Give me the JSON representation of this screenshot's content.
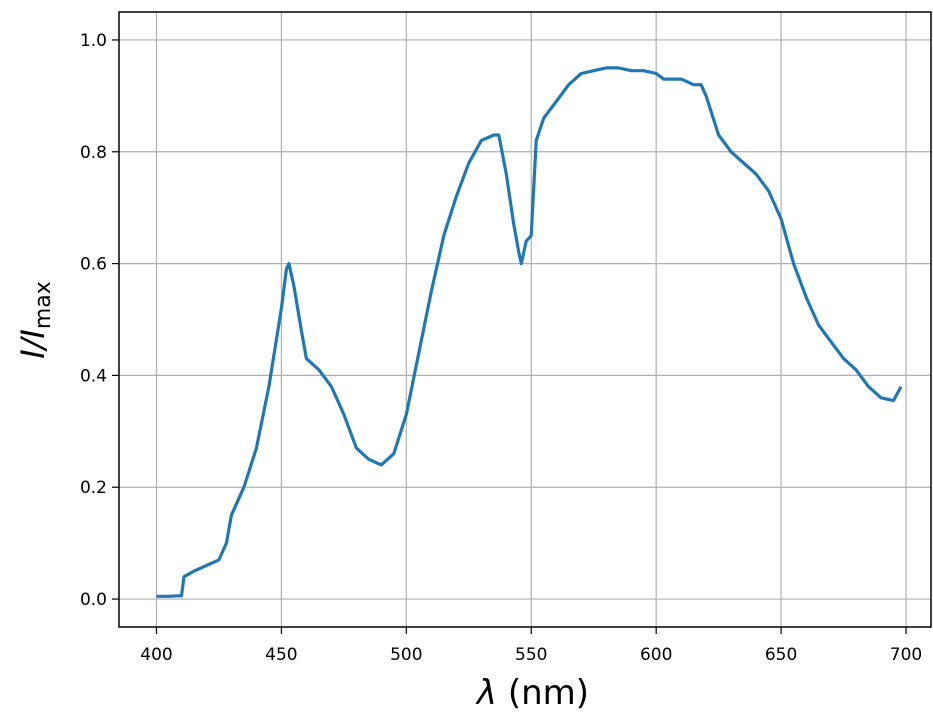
{
  "chart_data": {
    "type": "line",
    "xlabel": {
      "symbol": "λ",
      "rest": " (nm)"
    },
    "ylabel": {
      "main": "I/I",
      "subscript": "max"
    },
    "xlim": [
      385,
      710
    ],
    "ylim": [
      -0.05,
      1.05
    ],
    "xticks": [
      400,
      450,
      500,
      550,
      600,
      650,
      700
    ],
    "xtick_labels": [
      "400",
      "450",
      "500",
      "550",
      "600",
      "650",
      "700"
    ],
    "yticks": [
      0.0,
      0.2,
      0.4,
      0.6,
      0.8,
      1.0
    ],
    "ytick_labels": [
      "0.0",
      "0.2",
      "0.4",
      "0.6",
      "0.8",
      "1.0"
    ],
    "grid": true,
    "color": "#1f77b4",
    "series": [
      {
        "x": [
          400,
          405,
          410,
          411,
          415,
          420,
          425,
          428,
          430,
          435,
          440,
          445,
          450,
          452,
          453,
          455,
          458,
          460,
          465,
          470,
          475,
          480,
          485,
          490,
          495,
          500,
          505,
          510,
          515,
          520,
          525,
          530,
          535,
          537,
          540,
          543,
          545,
          546,
          548,
          550,
          552,
          555,
          560,
          565,
          570,
          575,
          580,
          585,
          590,
          595,
          600,
          603,
          605,
          610,
          615,
          618,
          620,
          625,
          630,
          635,
          640,
          645,
          650,
          655,
          660,
          665,
          670,
          675,
          680,
          685,
          690,
          695,
          698
        ],
        "y": [
          0.005,
          0.005,
          0.006,
          0.04,
          0.05,
          0.06,
          0.07,
          0.1,
          0.15,
          0.2,
          0.27,
          0.38,
          0.52,
          0.59,
          0.6,
          0.56,
          0.48,
          0.43,
          0.41,
          0.38,
          0.33,
          0.27,
          0.25,
          0.24,
          0.26,
          0.33,
          0.44,
          0.55,
          0.65,
          0.72,
          0.78,
          0.82,
          0.83,
          0.83,
          0.76,
          0.67,
          0.62,
          0.6,
          0.64,
          0.65,
          0.82,
          0.86,
          0.89,
          0.92,
          0.94,
          0.945,
          0.95,
          0.95,
          0.945,
          0.945,
          0.94,
          0.93,
          0.93,
          0.93,
          0.92,
          0.92,
          0.9,
          0.83,
          0.8,
          0.78,
          0.76,
          0.73,
          0.68,
          0.6,
          0.54,
          0.49,
          0.46,
          0.43,
          0.41,
          0.38,
          0.36,
          0.355,
          0.38
        ]
      }
    ]
  }
}
